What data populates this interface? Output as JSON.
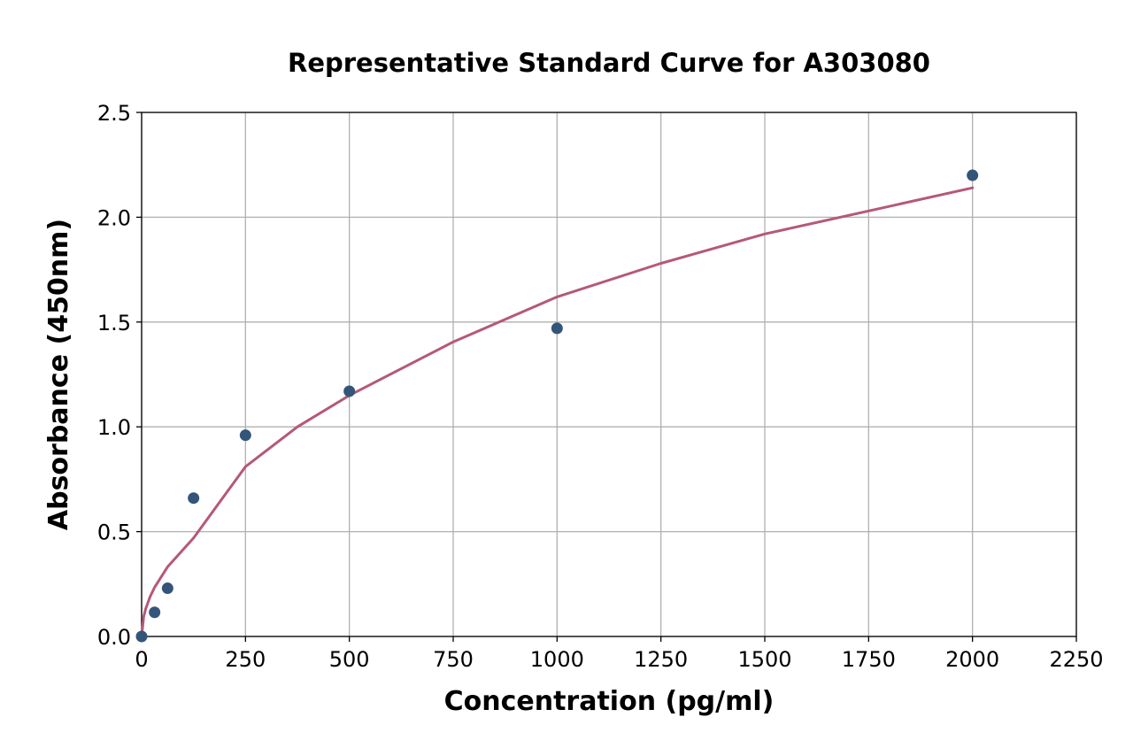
{
  "chart_data": {
    "type": "scatter",
    "title": "Representative Standard Curve for A303080",
    "xlabel": "Concentration (pg/ml)",
    "ylabel": "Absorbance (450nm)",
    "xlim": [
      0,
      2250
    ],
    "ylim": [
      0,
      2.5
    ],
    "xticks": [
      0,
      250,
      500,
      750,
      1000,
      1250,
      1500,
      1750,
      2000,
      2250
    ],
    "xtick_labels": [
      "0",
      "250",
      "500",
      "750",
      "1000",
      "1250",
      "1500",
      "1750",
      "2000",
      "2250"
    ],
    "yticks": [
      0,
      0.5,
      1.0,
      1.5,
      2.0,
      2.5
    ],
    "ytick_labels": [
      "0.0",
      "0.5",
      "1.0",
      "1.5",
      "2.0",
      "2.5"
    ],
    "grid": true,
    "series": [
      {
        "type": "scatter",
        "x": [
          0,
          31.25,
          62.5,
          125,
          250,
          500,
          1000,
          2000
        ],
        "y": [
          0.0,
          0.115,
          0.23,
          0.66,
          0.96,
          1.17,
          1.47,
          2.2
        ],
        "color": "#34557a"
      },
      {
        "type": "line",
        "x": [
          0,
          5,
          10,
          20,
          31.25,
          62.5,
          125,
          250,
          375,
          500,
          750,
          1000,
          1250,
          1500,
          1750,
          2000
        ],
        "y": [
          0.0,
          0.094,
          0.133,
          0.188,
          0.235,
          0.332,
          0.47,
          0.81,
          1.0,
          1.15,
          1.405,
          1.62,
          1.78,
          1.92,
          2.03,
          2.14
        ],
        "color": "#b5587a"
      }
    ]
  }
}
